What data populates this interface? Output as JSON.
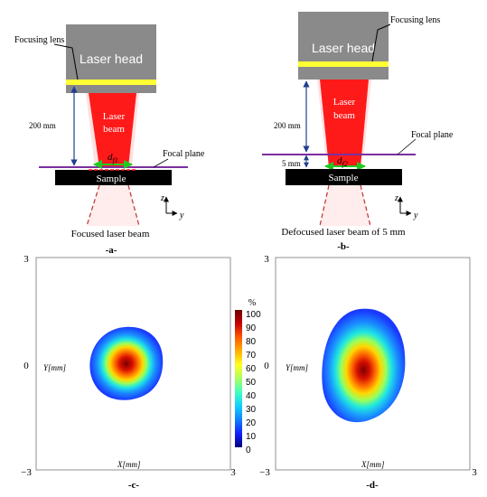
{
  "panel_a": {
    "laser_head": "Laser head",
    "focusing_lens": "Focusing lens",
    "laser_beam_line1": "Laser",
    "laser_beam_line2": "beam",
    "distance": "200 mm",
    "focal_plane": "Focal plane",
    "spot_label": "d",
    "spot_sub": "f1",
    "sample": "Sample",
    "axis_z": "z",
    "axis_y": "y",
    "beam_caption": "Focused laser beam",
    "panel_label": "-a-"
  },
  "panel_b": {
    "laser_head": "Laser head",
    "focusing_lens": "Focusing lens",
    "laser_beam_line1": "Laser",
    "laser_beam_line2": "beam",
    "distance": "200 mm",
    "offset": "5 mm",
    "focal_plane": "Focal plane",
    "spot_label": "d",
    "spot_sub": "f2",
    "sample": "Sample",
    "axis_z": "z",
    "axis_y": "y",
    "beam_caption": "Defocused laser beam of 5 mm",
    "panel_label": "-b-"
  },
  "panel_c": {
    "panel_label": "-c-",
    "x_axis": "X[mm]",
    "y_axis": "Y[mm]",
    "tick_top": "3",
    "tick_mid": "0",
    "tick_bottom": "−3",
    "tick_right": "3"
  },
  "panel_d": {
    "panel_label": "-d-",
    "x_axis": "X[mm]",
    "y_axis": "Y[mm]",
    "tick_top": "3",
    "tick_mid": "0",
    "tick_bottom": "−3",
    "tick_right": "3"
  },
  "colorbar": {
    "unit": "%",
    "ticks": [
      "100",
      "90",
      "80",
      "70",
      "60",
      "50",
      "40",
      "30",
      "20",
      "10",
      "0"
    ]
  },
  "colors": {
    "laser_head": "#8a8a8a",
    "lens": "#ffff33",
    "beam": "#ff1a1a",
    "focal_plane": "#7b2fa0",
    "spot": "#22c822",
    "sample": "#000000",
    "distance_arrow": "#1f3f8f"
  }
}
